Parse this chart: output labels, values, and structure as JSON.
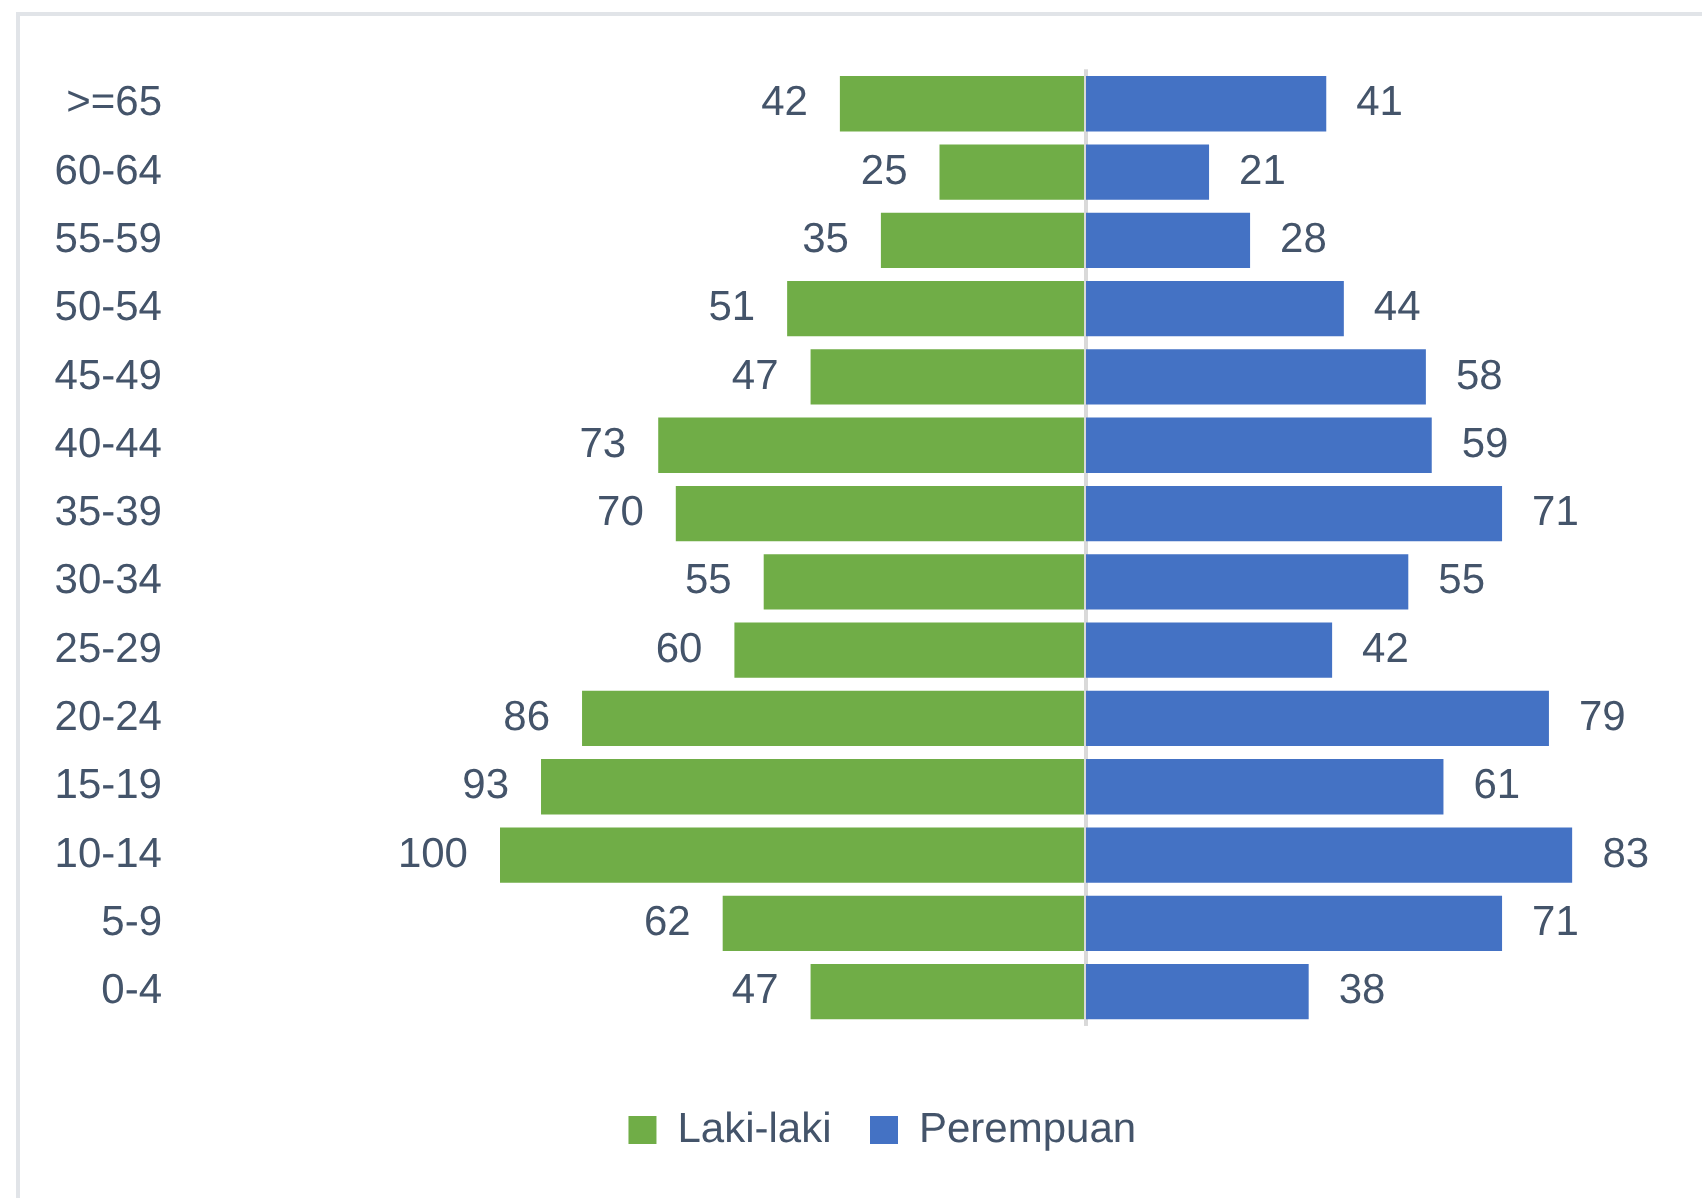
{
  "chart_data": [
    {
      "type": "bar",
      "orientation": "horizontal",
      "categories": [
        ">=65",
        "60-64",
        "55-59",
        "50-54",
        "45-49",
        "40-44",
        "35-39",
        "30-34",
        "25-29",
        "20-24",
        "15-19",
        "10-14",
        "5-9",
        "0-4"
      ],
      "series": [
        {
          "name": "Laki-laki",
          "color": "#70ad47",
          "values": [
            42,
            25,
            35,
            51,
            47,
            73,
            70,
            55,
            60,
            86,
            93,
            100,
            62,
            47
          ]
        }
      ],
      "data_labels": true,
      "grid": false,
      "legend": "bottom",
      "tick_labels": "y"
    },
    {
      "type": "bar",
      "orientation": "horizontal",
      "categories": [
        null,
        null,
        null,
        null,
        null,
        null,
        null,
        null,
        null,
        null,
        null,
        null,
        null,
        null
      ],
      "series": [
        {
          "name": "Perempuan",
          "color": "#4472c4",
          "values": [
            41,
            21,
            28,
            44,
            58,
            59,
            71,
            55,
            42,
            79,
            61,
            83,
            71,
            38
          ]
        }
      ],
      "data_labels": true,
      "grid": false,
      "legend": "bottom",
      "tick_labels": false
    }
  ]
}
